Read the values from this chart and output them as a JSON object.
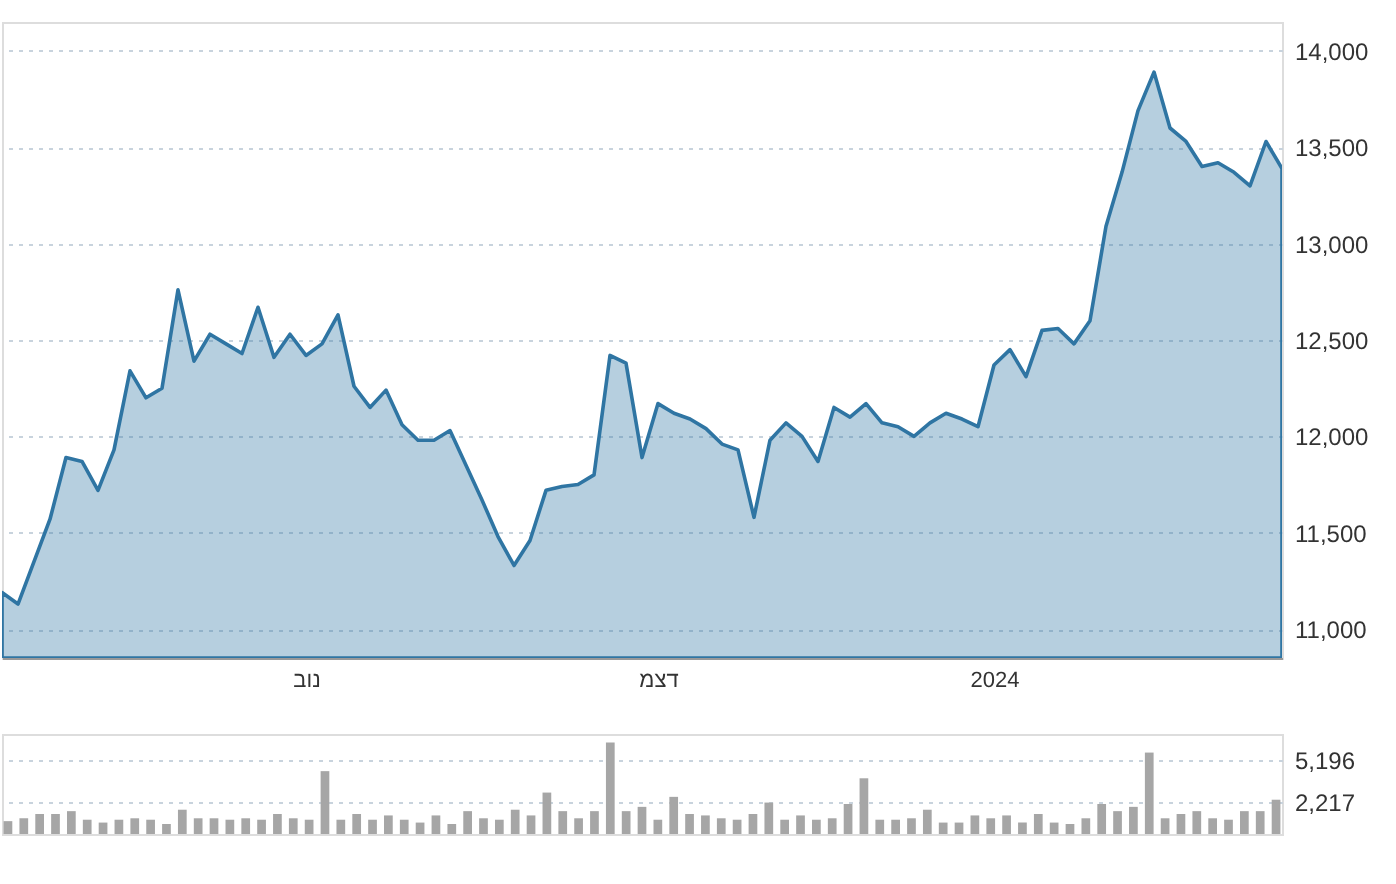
{
  "chart_data": [
    {
      "type": "area",
      "categories": [
        null,
        null,
        null,
        null,
        null,
        null,
        null,
        null,
        null,
        null,
        null,
        null,
        null,
        null,
        null,
        null,
        null,
        null,
        null,
        "נוב",
        null,
        null,
        null,
        null,
        null,
        null,
        null,
        null,
        null,
        null,
        null,
        null,
        null,
        null,
        null,
        null,
        null,
        null,
        null,
        null,
        null,
        "דצמ",
        null,
        null,
        null,
        null,
        null,
        null,
        null,
        null,
        null,
        null,
        null,
        null,
        null,
        null,
        null,
        null,
        null,
        null,
        null,
        null,
        "2024",
        null,
        null,
        null,
        null,
        null,
        null,
        null,
        null,
        null,
        null,
        null,
        null,
        null,
        null,
        null,
        null,
        null,
        null
      ],
      "series": [
        {
          "color": "#2f75a3",
          "values": [
            11190,
            11130,
            11350,
            11570,
            11890,
            11870,
            11720,
            11930,
            12340,
            12200,
            12250,
            12760,
            12390,
            12530,
            12480,
            12430,
            12670,
            12410,
            12530,
            12420,
            12480,
            12630,
            12260,
            12150,
            12240,
            12060,
            11980,
            11980,
            12030,
            11850,
            11670,
            11480,
            11330,
            11460,
            11720,
            11740,
            11750,
            11800,
            12420,
            12380,
            11890,
            12170,
            12120,
            12090,
            12040,
            11960,
            11930,
            11580,
            11980,
            12070,
            12000,
            11870,
            12150,
            12100,
            12170,
            12070,
            12050,
            12000,
            12070,
            12120,
            12090,
            12050,
            12370,
            12450,
            12310,
            12550,
            12560,
            12480,
            12600,
            13090,
            13370,
            13690,
            13890,
            13600,
            13530,
            13400,
            13420,
            13370,
            13300,
            13530,
            13390
          ]
        }
      ],
      "ylim": [
        10850,
        14150
      ],
      "yticks": [
        {
          "value": 11000,
          "label": "11,000"
        },
        {
          "value": 11500,
          "label": "11,500"
        },
        {
          "value": 12000,
          "label": "12,000"
        },
        {
          "value": 12500,
          "label": "12,500"
        },
        {
          "value": 13000,
          "label": "13,000"
        },
        {
          "value": 13500,
          "label": "13,500"
        },
        {
          "value": 14000,
          "label": "14,000"
        }
      ],
      "grid": "y"
    },
    {
      "type": "bar",
      "categories": [
        null,
        null,
        null,
        null,
        null,
        null,
        null,
        null,
        null,
        null,
        null,
        null,
        null,
        null,
        null,
        null,
        null,
        null,
        null,
        null,
        null,
        null,
        null,
        null,
        null,
        null,
        null,
        null,
        null,
        null,
        null,
        null,
        null,
        null,
        null,
        null,
        null,
        null,
        null,
        null,
        null,
        null,
        null,
        null,
        null,
        null,
        null,
        null,
        null,
        null,
        null,
        null,
        null,
        null,
        null,
        null,
        null,
        null,
        null,
        null,
        null,
        null,
        null,
        null,
        null,
        null,
        null,
        null,
        null,
        null,
        null,
        null,
        null,
        null,
        null,
        null,
        null,
        null,
        null,
        null,
        null
      ],
      "series": [
        {
          "color": "#a6a6a6",
          "values": [
            900,
            1100,
            1400,
            1400,
            1600,
            1000,
            800,
            1000,
            1100,
            1000,
            700,
            1700,
            1100,
            1100,
            1000,
            1100,
            1000,
            1400,
            1100,
            1000,
            4400,
            1000,
            1400,
            1000,
            1300,
            1000,
            800,
            1300,
            700,
            1600,
            1100,
            1000,
            1700,
            1300,
            2900,
            1600,
            1100,
            1600,
            6400,
            1600,
            1900,
            1000,
            2600,
            1400,
            1300,
            1100,
            1000,
            1400,
            2200,
            1000,
            1300,
            1000,
            1100,
            2100,
            3900,
            1000,
            1000,
            1100,
            1700,
            800,
            800,
            1300,
            1100,
            1300,
            800,
            1400,
            800,
            700,
            1100,
            2100,
            1600,
            1900,
            5700,
            1100,
            1400,
            1600,
            1100,
            1000,
            1600,
            1600,
            2400
          ]
        }
      ],
      "ylim": [
        0,
        7000
      ],
      "yticks": [
        {
          "value": 2217,
          "label": "2,217"
        },
        {
          "value": 5196,
          "label": "5,196"
        }
      ],
      "grid": "y",
      "tick_labels": "y"
    }
  ]
}
